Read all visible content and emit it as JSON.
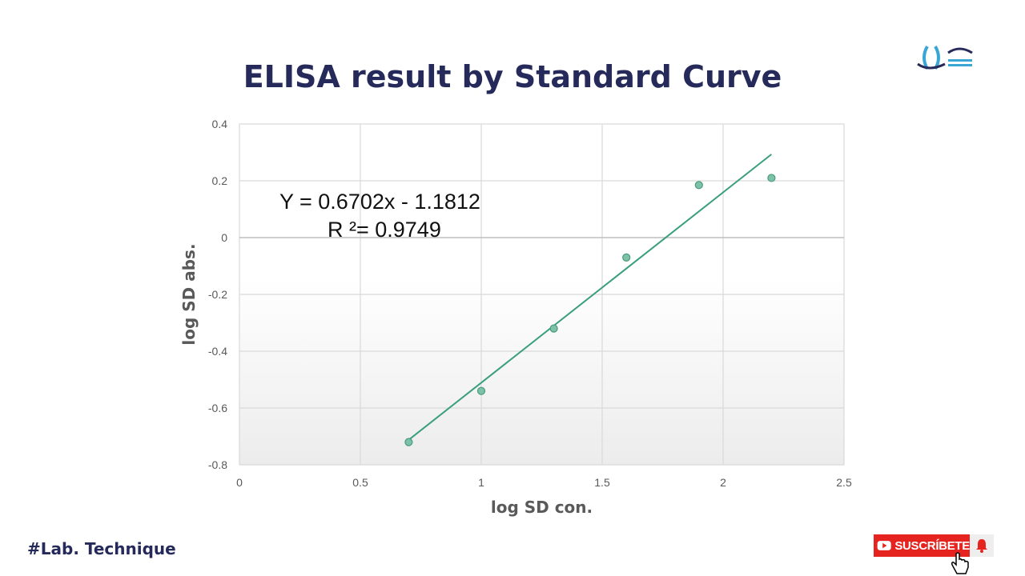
{
  "header": {
    "title": "ELISA result by Standard Curve",
    "logo_icon": "faiza-lab-logo-icon"
  },
  "footer": {
    "hashtag": "#Lab. Technique",
    "subscribe_label": "SUSCRÍBETE",
    "subscribe_color": "#e52420",
    "play_icon": "youtube-play-icon",
    "bell_icon": "bell-icon",
    "cursor_icon": "hand-pointer-icon"
  },
  "chart_data": {
    "type": "scatter",
    "title": "",
    "xlabel": "log SD con.",
    "ylabel": "log SD abs.",
    "xlim": [
      0,
      2.5
    ],
    "ylim": [
      -0.8,
      0.4
    ],
    "xticks": [
      "0",
      "0.5",
      "1",
      "1.5",
      "2",
      "2.5"
    ],
    "yticks": [
      "0.4",
      "0.2",
      "0",
      "-0.2",
      "-0.4",
      "-0.6",
      "-0.8"
    ],
    "grid": true,
    "points": [
      {
        "x": 0.7,
        "y": -0.72
      },
      {
        "x": 1.0,
        "y": -0.54
      },
      {
        "x": 1.3,
        "y": -0.32
      },
      {
        "x": 1.6,
        "y": -0.07
      },
      {
        "x": 1.9,
        "y": 0.185
      },
      {
        "x": 2.2,
        "y": 0.21
      }
    ],
    "trendline": {
      "slope": 0.6702,
      "intercept": -1.1812,
      "x_range": [
        0.7,
        2.2
      ]
    },
    "equation": "Y = 0.6702x - 1.1812",
    "r_squared": "R ²= 0.9749",
    "marker_color": "#7cc2a8",
    "line_color": "#3a9e7e"
  }
}
